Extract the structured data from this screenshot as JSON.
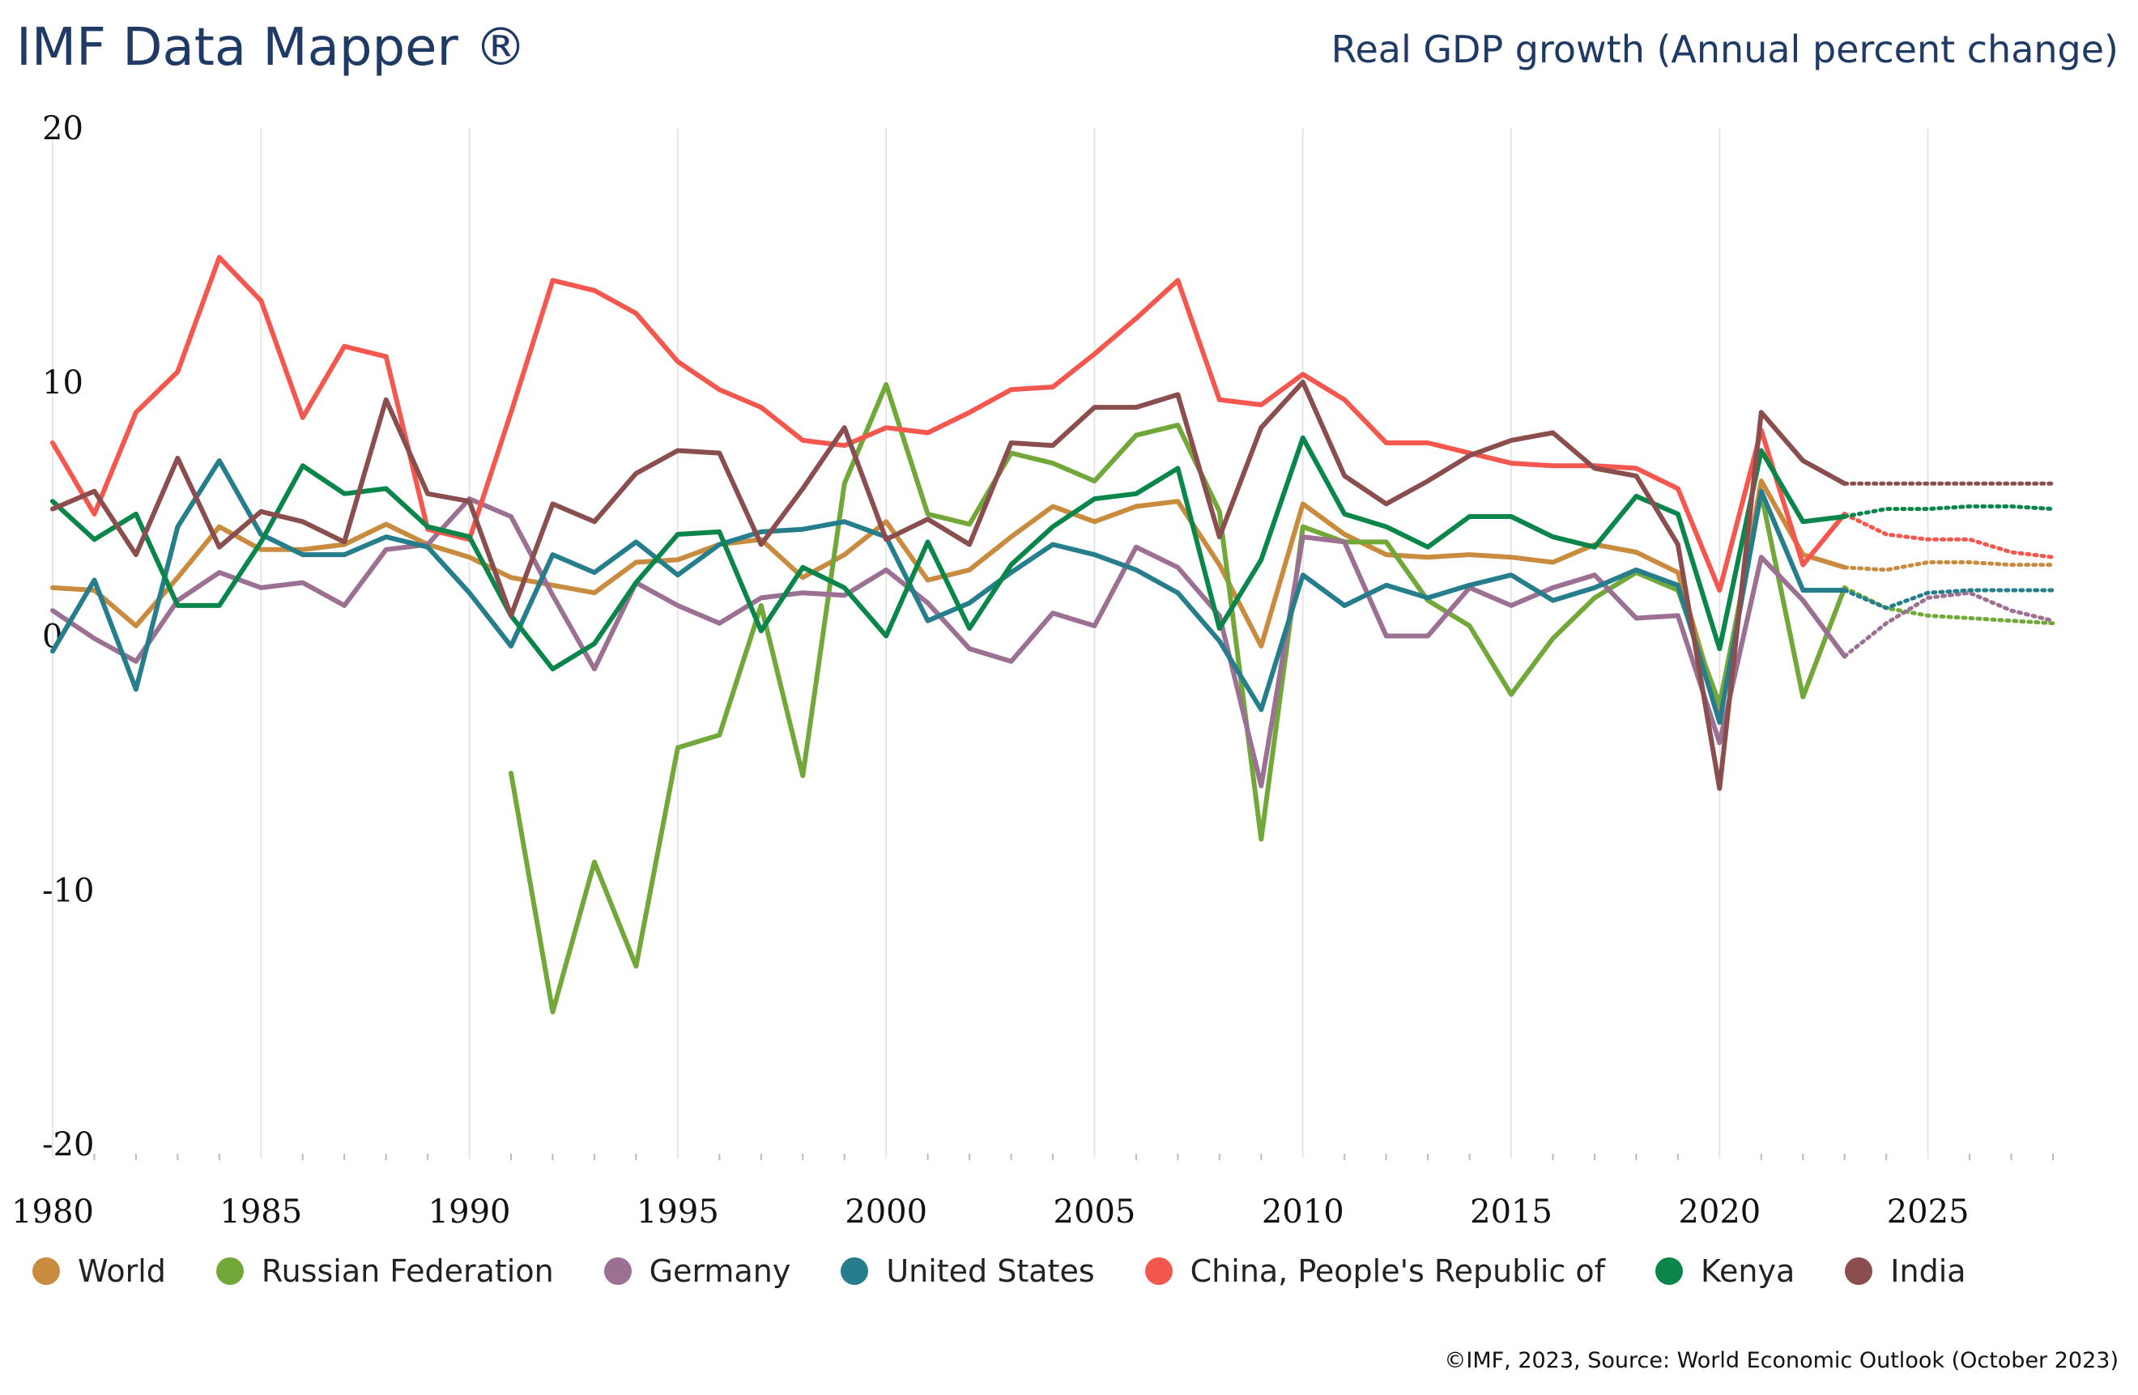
{
  "header": {
    "app_title": "IMF Data Mapper ®",
    "indicator_title": "Real GDP growth (Annual percent change)"
  },
  "footer": {
    "source": "©IMF, 2023, Source: World Economic Outlook (October 2023)"
  },
  "colors": {
    "grid": "#e6e6e6",
    "text_title": "#1f3a64"
  },
  "chart_data": {
    "type": "line",
    "title": "Real GDP growth (Annual percent change)",
    "xlim": [
      1980,
      2028
    ],
    "ylim": [
      -20,
      20
    ],
    "x_ticks": [
      "1980",
      "1985",
      "1990",
      "1995",
      "2000",
      "2005",
      "2010",
      "2015",
      "2020",
      "2025"
    ],
    "y_ticks": [
      "20",
      "10",
      "0",
      "-10",
      "-20"
    ],
    "y_tick_values": [
      20,
      10,
      0,
      -10,
      -20
    ],
    "x_tick_values": [
      1980,
      1985,
      1990,
      1995,
      2000,
      2005,
      2010,
      2015,
      2020,
      2025
    ],
    "grid": "vertical",
    "legend_position": "bottom",
    "actual_end_year": 2023,
    "forecast_style": "dotted",
    "start_year": 1980,
    "series": [
      {
        "name": "World",
        "color": "#c98b3e",
        "values": [
          1.9,
          1.8,
          0.4,
          2.3,
          4.3,
          3.4,
          3.4,
          3.6,
          4.4,
          3.6,
          3.1,
          2.3,
          2.0,
          1.7,
          2.9,
          3.0,
          3.6,
          3.8,
          2.3,
          3.2,
          4.5,
          2.2,
          2.6,
          3.9,
          5.1,
          4.5,
          5.1,
          5.3,
          2.8,
          -0.4,
          5.2,
          4.0,
          3.2,
          3.1,
          3.2,
          3.1,
          2.9,
          3.6,
          3.3,
          2.5,
          -3.1,
          6.1,
          3.2,
          2.7,
          2.6,
          2.9,
          2.9,
          2.8,
          2.8
        ]
      },
      {
        "name": "Russian Federation",
        "color": "#72a83a",
        "values": [
          null,
          null,
          null,
          null,
          null,
          null,
          null,
          null,
          null,
          null,
          null,
          -5.4,
          -14.8,
          -8.9,
          -13.0,
          -4.4,
          -3.9,
          1.2,
          -5.5,
          6.0,
          9.9,
          4.8,
          4.4,
          7.2,
          6.8,
          6.1,
          7.9,
          8.3,
          4.9,
          -8.0,
          4.3,
          3.7,
          3.7,
          1.4,
          0.4,
          -2.3,
          -0.1,
          1.5,
          2.5,
          1.8,
          -2.7,
          5.6,
          -2.4,
          1.9,
          1.1,
          0.8,
          0.7,
          0.6,
          0.5
        ]
      },
      {
        "name": "Germany",
        "color": "#9b7092",
        "values": [
          1.0,
          -0.1,
          -1.0,
          1.4,
          2.5,
          1.9,
          2.1,
          1.2,
          3.4,
          3.6,
          5.4,
          4.7,
          1.6,
          -1.3,
          2.1,
          1.2,
          0.5,
          1.5,
          1.7,
          1.6,
          2.6,
          1.3,
          -0.5,
          -1.0,
          0.9,
          0.4,
          3.5,
          2.7,
          0.8,
          -5.9,
          3.9,
          3.7,
          0.0,
          0.0,
          1.9,
          1.2,
          1.9,
          2.4,
          0.7,
          0.8,
          -4.2,
          3.1,
          1.4,
          -0.8,
          0.5,
          1.5,
          1.7,
          1.0,
          0.6
        ]
      },
      {
        "name": "United States",
        "color": "#267d8c",
        "values": [
          -0.6,
          2.2,
          -2.1,
          4.3,
          6.9,
          4.0,
          3.2,
          3.2,
          3.9,
          3.5,
          1.7,
          -0.4,
          3.2,
          2.5,
          3.7,
          2.4,
          3.6,
          4.1,
          4.2,
          4.5,
          3.9,
          0.6,
          1.3,
          2.5,
          3.6,
          3.2,
          2.6,
          1.7,
          -0.2,
          -2.9,
          2.4,
          1.2,
          2.0,
          1.5,
          2.0,
          2.4,
          1.4,
          1.9,
          2.6,
          2.0,
          -3.4,
          5.7,
          1.8,
          1.8,
          1.1,
          1.7,
          1.8,
          1.8,
          1.8
        ]
      },
      {
        "name": "China, People's Republic of",
        "color": "#f4574e",
        "values": [
          7.6,
          4.8,
          8.8,
          10.4,
          14.9,
          13.2,
          8.6,
          11.4,
          11.0,
          4.2,
          3.8,
          8.8,
          14.0,
          13.6,
          12.7,
          10.8,
          9.7,
          9.0,
          7.7,
          7.5,
          8.2,
          8.0,
          8.8,
          9.7,
          9.8,
          11.1,
          12.5,
          14.0,
          9.3,
          9.1,
          10.3,
          9.3,
          7.6,
          7.6,
          7.2,
          6.8,
          6.7,
          6.7,
          6.6,
          5.8,
          1.8,
          8.1,
          2.8,
          4.8,
          4.0,
          3.8,
          3.8,
          3.3,
          3.1
        ]
      },
      {
        "name": "Kenya",
        "color": "#0a864a",
        "values": [
          5.3,
          3.8,
          4.8,
          1.2,
          1.2,
          3.7,
          6.7,
          5.6,
          5.8,
          4.3,
          3.9,
          0.8,
          -1.3,
          -0.3,
          2.1,
          4.0,
          4.1,
          0.2,
          2.7,
          1.9,
          0.0,
          3.7,
          0.3,
          2.8,
          4.3,
          5.4,
          5.6,
          6.6,
          0.3,
          3.0,
          7.8,
          4.8,
          4.3,
          3.5,
          4.7,
          4.7,
          3.9,
          3.5,
          5.5,
          4.8,
          -0.5,
          7.3,
          4.5,
          4.7,
          5.0,
          5.0,
          5.1,
          5.1,
          5.0
        ]
      },
      {
        "name": "India",
        "color": "#8a4e4e",
        "values": [
          5.0,
          5.7,
          3.2,
          7.0,
          3.5,
          4.9,
          4.5,
          3.7,
          9.3,
          5.6,
          5.3,
          0.8,
          5.2,
          4.5,
          6.4,
          7.3,
          7.2,
          3.6,
          5.8,
          8.2,
          3.8,
          4.6,
          3.6,
          7.6,
          7.5,
          9.0,
          9.0,
          9.5,
          3.9,
          8.2,
          10.0,
          6.3,
          5.2,
          6.1,
          7.1,
          7.7,
          8.0,
          6.6,
          6.3,
          3.6,
          -6.0,
          8.8,
          6.9,
          6.0,
          6.0,
          6.0,
          6.0,
          6.0,
          6.0
        ]
      }
    ]
  }
}
